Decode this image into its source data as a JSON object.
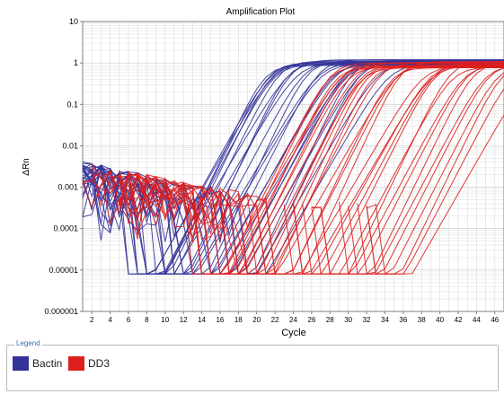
{
  "chart_data": {
    "type": "line",
    "title": "Amplification Plot",
    "xlabel": "Cycle",
    "ylabel": "ΔRn",
    "yscale": "log",
    "xlim": [
      1,
      47
    ],
    "ylim": [
      1e-06,
      10
    ],
    "x_ticks": [
      "2",
      "4",
      "6",
      "8",
      "10",
      "12",
      "14",
      "16",
      "18",
      "20",
      "22",
      "24",
      "26",
      "28",
      "30",
      "32",
      "34",
      "36",
      "38",
      "40",
      "42",
      "44",
      "46"
    ],
    "y_ticks": [
      "10",
      "1",
      "0.1",
      "0.01",
      "0.001",
      "0.0001",
      "0.00001",
      "0.000001"
    ],
    "grid": true,
    "series": [
      {
        "name": "Bactin",
        "color": "#333399",
        "curve_count": 26,
        "ct_range": [
          13,
          25
        ],
        "plateau": 1.05
      },
      {
        "name": "DD3",
        "color": "#dd1f1f",
        "curve_count": 34,
        "ct_range": [
          20,
          41
        ],
        "plateau": 0.95
      }
    ]
  },
  "legend": {
    "caption": "Legend",
    "items": [
      {
        "label": "Bactin",
        "color": "#333399"
      },
      {
        "label": "DD3",
        "color": "#dd1f1f"
      }
    ]
  }
}
